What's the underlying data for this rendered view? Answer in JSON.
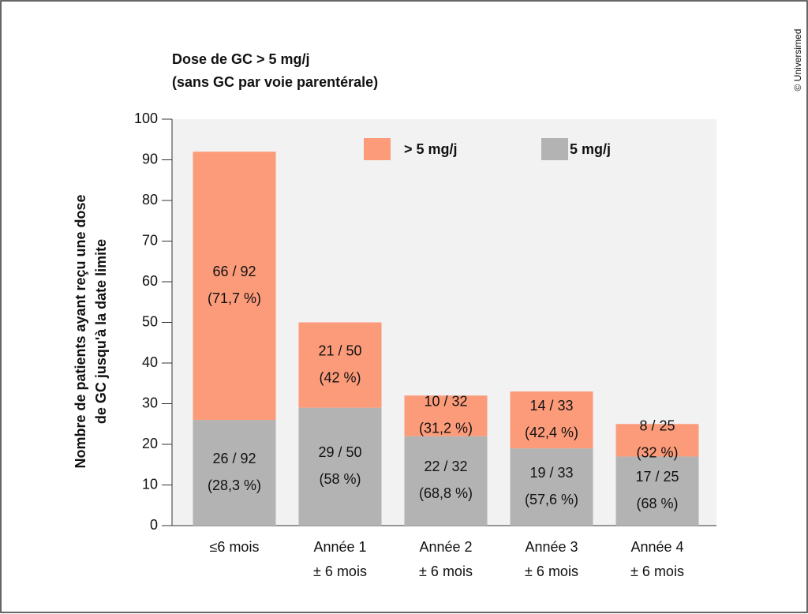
{
  "chart_data": {
    "type": "stacked-bar",
    "title": "Dose de GC > 5 mg/j",
    "subtitle": "(sans GC par voie parentérale)",
    "ylabel": [
      "Nombre de patients ayant reçu une dose",
      "de GC jusqu'à la date limite"
    ],
    "copyright": "© Universimed",
    "categories": [
      [
        "≤6 mois"
      ],
      [
        "Année 1",
        "± 6 mois"
      ],
      [
        "Année 2",
        "± 6 mois"
      ],
      [
        "Année 3",
        "± 6 mois"
      ],
      [
        "Année 4",
        "± 6 mois"
      ]
    ],
    "series": [
      {
        "name": "5 mg/j",
        "color": "#b3b3b3",
        "values": [
          26,
          29,
          22,
          19,
          17
        ],
        "value_labels": [
          "26 / 92",
          "29 / 50",
          "22 / 32",
          "19 / 33",
          "17 / 25"
        ],
        "percent_labels": [
          "(28,3 %)",
          "(58 %)",
          "(68,8 %)",
          "(57,6 %)",
          "(68 %)"
        ]
      },
      {
        "name": "> 5 mg/j",
        "color": "#fc9b7a",
        "values": [
          66,
          21,
          10,
          14,
          8
        ],
        "value_labels": [
          "66 / 92",
          "21 / 50",
          "10 / 32",
          "14 / 33",
          "8 / 25"
        ],
        "percent_labels": [
          "(71,7 %)",
          "(42 %)",
          "(31,2 %)",
          "(42,4 %)",
          "(32 %)"
        ]
      }
    ],
    "ylim": [
      0,
      100
    ],
    "yticks": [
      0,
      10,
      20,
      30,
      40,
      50,
      60,
      70,
      80,
      90,
      100
    ]
  }
}
